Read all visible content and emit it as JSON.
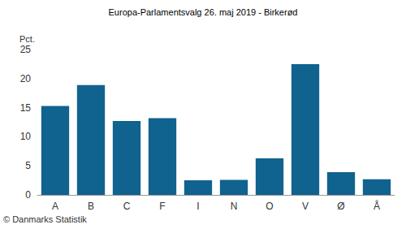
{
  "chart_data": {
    "type": "bar",
    "title": "Europa-Parlamentsvalg 26. maj 2019 - Birkerød",
    "ylabel": "Pct.",
    "footnote": "© Danmarks Statistik",
    "categories": [
      "A",
      "B",
      "C",
      "F",
      "I",
      "N",
      "O",
      "V",
      "Ø",
      "Å"
    ],
    "values": [
      15.3,
      18.9,
      12.7,
      13.2,
      2.5,
      2.6,
      6.3,
      22.5,
      3.9,
      2.7
    ],
    "color": "#10628f",
    "ylim": [
      0,
      25
    ],
    "yticks": [
      0,
      5,
      10,
      15,
      20,
      25
    ],
    "grid": false
  }
}
